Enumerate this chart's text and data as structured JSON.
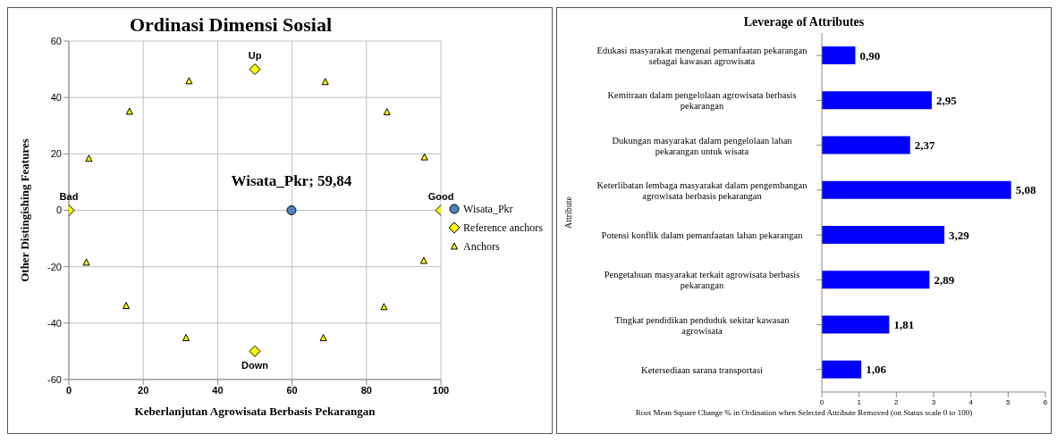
{
  "chart_data": [
    {
      "type": "scatter",
      "title": "Ordinasi Dimensi Sosial",
      "xlabel": "Keberlanjutan Agrowisata Berbasis Pekarangan",
      "ylabel": "Other Distingishing Features",
      "xlim": [
        0,
        100
      ],
      "xticks": [
        0,
        20,
        40,
        60,
        80,
        100
      ],
      "ylim": [
        -60,
        60
      ],
      "yticks": [
        -60,
        -40,
        -20,
        0,
        20,
        40,
        60
      ],
      "grid": true,
      "legend": "right",
      "series": [
        {
          "name": "Wisata_Pkr",
          "color": "#4f81bd",
          "marker": "circle",
          "x": [
            59.84
          ],
          "values": [
            0
          ]
        },
        {
          "name": "Reference anchors",
          "color": "#ffff00",
          "marker": "diamond",
          "x": [
            0,
            100,
            50,
            50
          ],
          "values": [
            0,
            0,
            50,
            -50
          ]
        },
        {
          "name": "Anchors",
          "color": "#ffff00",
          "marker": "triangle",
          "x": [
            5.4,
            16.3,
            32.3,
            68.9,
            85.5,
            95.6,
            4.7,
            15.4,
            31.5,
            68.4,
            84.7,
            95.4
          ],
          "values": [
            18.3,
            35.0,
            45.8,
            45.5,
            34.8,
            18.8,
            -18.5,
            -33.9,
            -45.3,
            -45.3,
            -34.3,
            -17.9
          ]
        }
      ],
      "annotations": [
        {
          "text": "Bad",
          "x": 0,
          "y": 0
        },
        {
          "text": "Good",
          "x": 100,
          "y": 0
        },
        {
          "text": "Up",
          "x": 50,
          "y": 50
        },
        {
          "text": "Down",
          "x": 50,
          "y": -50
        },
        {
          "text": "Wisata_Pkr; 59,84",
          "x": 59.84,
          "y": 0
        }
      ]
    },
    {
      "type": "bar",
      "orientation": "horizontal",
      "title": "Leverage of Attributes",
      "xlabel": "Root Mean Square Change % in Ordination when Selected Attribute Removed (on Status scale 0 to 100)",
      "ylabel": "Attribute",
      "xlim": [
        0,
        6
      ],
      "xticks": [
        0,
        1,
        2,
        3,
        4,
        5,
        6
      ],
      "grid": false,
      "categories": [
        "Edukasi masyarakat mengenai pemanfaatan pekarangan sebagai kawasan agrowisata",
        "Kemitraan dalam pengelolaan agrowisata berbasis pekarangan",
        "Dukungan masyarakat dalam pengelolaan lahan pekarangan untuk wisata",
        "Keterlibatan lembaga masyarakat dalam pengembangan agrowisata berbasis pekarangan",
        "Potensi konflik dalam pemanfaatan lahan pekarangan",
        "Pengetahuan masyarakat terkait agrowisata berbasis pekarangan",
        "Tingkat pendidikan penduduk sekitar kawasan agrowisata",
        "Ketersediaan sarana transportasi"
      ],
      "values": [
        0.9,
        2.95,
        2.37,
        5.08,
        3.29,
        2.89,
        1.81,
        1.06
      ],
      "color": "#0000ff",
      "value_labels": [
        "0,90",
        "2,95",
        "2,37",
        "5,08",
        "3,29",
        "2,89",
        "1,81",
        "1,06"
      ]
    }
  ]
}
